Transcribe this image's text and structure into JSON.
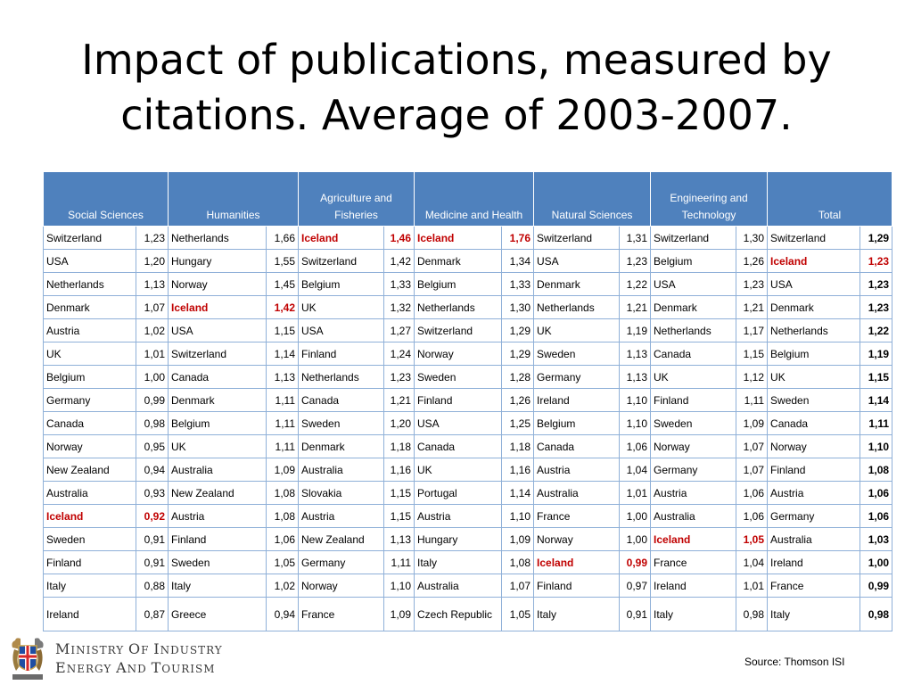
{
  "title": "Impact of publications, measured by citations. Average of 2003-2007.",
  "headers": [
    "Social Sciences",
    "Humanities",
    "Agriculture and Fisheries",
    "Medicine and Health",
    "Natural Sciences",
    "Engineering and Technology",
    "Total"
  ],
  "highlight_color": "#c00000",
  "header_color": "#4f81bd",
  "rows": [
    [
      [
        "Switzerland",
        "1,23"
      ],
      [
        "Netherlands",
        "1,66"
      ],
      [
        "Iceland",
        "1,46"
      ],
      [
        "Iceland",
        "1,76"
      ],
      [
        "Switzerland",
        "1,31"
      ],
      [
        "Switzerland",
        "1,30"
      ],
      [
        "Switzerland",
        "1,29"
      ]
    ],
    [
      [
        "USA",
        "1,20"
      ],
      [
        "Hungary",
        "1,55"
      ],
      [
        "Switzerland",
        "1,42"
      ],
      [
        "Denmark",
        "1,34"
      ],
      [
        "USA",
        "1,23"
      ],
      [
        "Belgium",
        "1,26"
      ],
      [
        "Iceland",
        "1,23"
      ]
    ],
    [
      [
        "Netherlands",
        "1,13"
      ],
      [
        "Norway",
        "1,45"
      ],
      [
        "Belgium",
        "1,33"
      ],
      [
        "Belgium",
        "1,33"
      ],
      [
        "Denmark",
        "1,22"
      ],
      [
        "USA",
        "1,23"
      ],
      [
        "USA",
        "1,23"
      ]
    ],
    [
      [
        "Denmark",
        "1,07"
      ],
      [
        "Iceland",
        "1,42"
      ],
      [
        "UK",
        "1,32"
      ],
      [
        "Netherlands",
        "1,30"
      ],
      [
        "Netherlands",
        "1,21"
      ],
      [
        "Denmark",
        "1,21"
      ],
      [
        "Denmark",
        "1,23"
      ]
    ],
    [
      [
        "Austria",
        "1,02"
      ],
      [
        "USA",
        "1,15"
      ],
      [
        "USA",
        "1,27"
      ],
      [
        "Switzerland",
        "1,29"
      ],
      [
        "UK",
        "1,19"
      ],
      [
        "Netherlands",
        "1,17"
      ],
      [
        "Netherlands",
        "1,22"
      ]
    ],
    [
      [
        "UK",
        "1,01"
      ],
      [
        "Switzerland",
        "1,14"
      ],
      [
        "Finland",
        "1,24"
      ],
      [
        "Norway",
        "1,29"
      ],
      [
        "Sweden",
        "1,13"
      ],
      [
        "Canada",
        "1,15"
      ],
      [
        "Belgium",
        "1,19"
      ]
    ],
    [
      [
        "Belgium",
        "1,00"
      ],
      [
        "Canada",
        "1,13"
      ],
      [
        "Netherlands",
        "1,23"
      ],
      [
        "Sweden",
        "1,28"
      ],
      [
        "Germany",
        "1,13"
      ],
      [
        "UK",
        "1,12"
      ],
      [
        "UK",
        "1,15"
      ]
    ],
    [
      [
        "Germany",
        "0,99"
      ],
      [
        "Denmark",
        "1,11"
      ],
      [
        "Canada",
        "1,21"
      ],
      [
        "Finland",
        "1,26"
      ],
      [
        "Ireland",
        "1,10"
      ],
      [
        "Finland",
        "1,11"
      ],
      [
        "Sweden",
        "1,14"
      ]
    ],
    [
      [
        "Canada",
        "0,98"
      ],
      [
        "Belgium",
        "1,11"
      ],
      [
        "Sweden",
        "1,20"
      ],
      [
        "USA",
        "1,25"
      ],
      [
        "Belgium",
        "1,10"
      ],
      [
        "Sweden",
        "1,09"
      ],
      [
        "Canada",
        "1,11"
      ]
    ],
    [
      [
        "Norway",
        "0,95"
      ],
      [
        "UK",
        "1,11"
      ],
      [
        "Denmark",
        "1,18"
      ],
      [
        "Canada",
        "1,18"
      ],
      [
        "Canada",
        "1,06"
      ],
      [
        "Norway",
        "1,07"
      ],
      [
        "Norway",
        "1,10"
      ]
    ],
    [
      [
        "New Zealand",
        "0,94"
      ],
      [
        "Australia",
        "1,09"
      ],
      [
        "Australia",
        "1,16"
      ],
      [
        "UK",
        "1,16"
      ],
      [
        "Austria",
        "1,04"
      ],
      [
        "Germany",
        "1,07"
      ],
      [
        "Finland",
        "1,08"
      ]
    ],
    [
      [
        "Australia",
        "0,93"
      ],
      [
        "New Zealand",
        "1,08"
      ],
      [
        "Slovakia",
        "1,15"
      ],
      [
        "Portugal",
        "1,14"
      ],
      [
        "Australia",
        "1,01"
      ],
      [
        "Austria",
        "1,06"
      ],
      [
        "Austria",
        "1,06"
      ]
    ],
    [
      [
        "Iceland",
        "0,92"
      ],
      [
        "Austria",
        "1,08"
      ],
      [
        "Austria",
        "1,15"
      ],
      [
        "Austria",
        "1,10"
      ],
      [
        "France",
        "1,00"
      ],
      [
        "Australia",
        "1,06"
      ],
      [
        "Germany",
        "1,06"
      ]
    ],
    [
      [
        "Sweden",
        "0,91"
      ],
      [
        "Finland",
        "1,06"
      ],
      [
        "New Zealand",
        "1,13"
      ],
      [
        "Hungary",
        "1,09"
      ],
      [
        "Norway",
        "1,00"
      ],
      [
        "Iceland",
        "1,05"
      ],
      [
        "Australia",
        "1,03"
      ]
    ],
    [
      [
        "Finland",
        "0,91"
      ],
      [
        "Sweden",
        "1,05"
      ],
      [
        "Germany",
        "1,11"
      ],
      [
        "Italy",
        "1,08"
      ],
      [
        "Iceland",
        "0,99"
      ],
      [
        "France",
        "1,04"
      ],
      [
        "Ireland",
        "1,00"
      ]
    ],
    [
      [
        "Italy",
        "0,88"
      ],
      [
        "Italy",
        "1,02"
      ],
      [
        "Norway",
        "1,10"
      ],
      [
        "Australia",
        "1,07"
      ],
      [
        "Finland",
        "0,97"
      ],
      [
        "Ireland",
        "1,01"
      ],
      [
        "France",
        "0,99"
      ]
    ],
    [
      [
        "Ireland",
        "0,87"
      ],
      [
        "Greece",
        "0,94"
      ],
      [
        "France",
        "1,09"
      ],
      [
        "Czech Republic",
        "1,05"
      ],
      [
        "Italy",
        "0,91"
      ],
      [
        "Italy",
        "0,98"
      ],
      [
        "Italy",
        "0,98"
      ]
    ]
  ],
  "footer": {
    "ministry_line1": "Ministry of Industry",
    "ministry_line2": "Energy and Tourism",
    "source": "Source: Thomson ISI",
    "logo_icon": "iceland-coat-of-arms-icon"
  }
}
